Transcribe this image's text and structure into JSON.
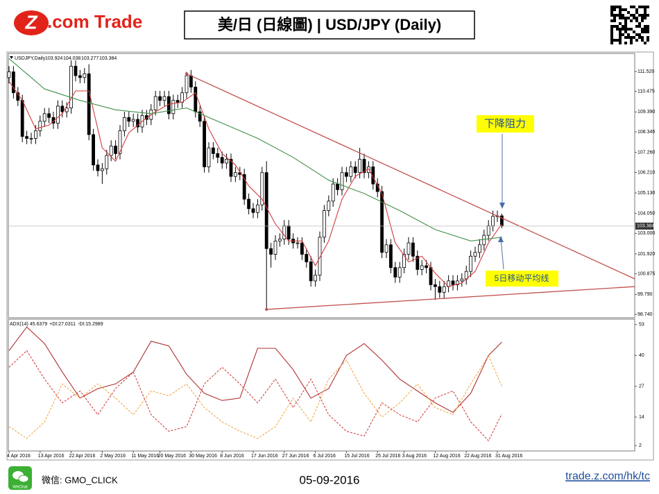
{
  "header": {
    "logo_text": ".com Trade",
    "title": "美/日 (日線圖) | USD/JPY  (Daily)"
  },
  "footer": {
    "wechat_icon_label": "WeChat",
    "wechat_label": "微信: GMO_CLICK",
    "date": "05-09-2016",
    "url": "trade.z.com/hk/tc"
  },
  "chart_data": [
    {
      "type": "candlestick",
      "symbol_label": "USDJPY,Daily",
      "categories": [
        "4 Apr 2016",
        null,
        null,
        null,
        null,
        null,
        null,
        "13 Apr 2016",
        null,
        null,
        null,
        null,
        null,
        null,
        "22 Apr 2016",
        null,
        null,
        null,
        null,
        null,
        null,
        "2 May 2016",
        null,
        null,
        null,
        null,
        null,
        null,
        "11 May 2016",
        null,
        null,
        null,
        null,
        null,
        "20 May 2016",
        null,
        null,
        null,
        null,
        null,
        null,
        "30 May 2016",
        null,
        null,
        null,
        null,
        null,
        null,
        "8 Jun 2016",
        null,
        null,
        null,
        null,
        null,
        null,
        "17 Jun 2016",
        null,
        null,
        null,
        null,
        null,
        null,
        "27 Jun 2016",
        null,
        null,
        null,
        null,
        null,
        null,
        "6 Jul 2016",
        null,
        null,
        null,
        null,
        null,
        null,
        "15 Jul 2016",
        null,
        null,
        null,
        null,
        null,
        null,
        "25 Jul 2016",
        null,
        null,
        null,
        null,
        null,
        "3 Aug 2016",
        null,
        null,
        null,
        null,
        null,
        null,
        "12 Aug 2016",
        null,
        null,
        null,
        null,
        null,
        null,
        "22 Aug 2016",
        null,
        null,
        null,
        null,
        null,
        null,
        "31 Aug 2016",
        null
      ],
      "ohlc": [
        [
          111.2,
          111.8,
          110.9,
          111.5
        ],
        [
          111.5,
          111.8,
          110.1,
          110.4
        ],
        [
          110.4,
          110.7,
          109.7,
          110.0
        ],
        [
          110.0,
          110.3,
          107.8,
          108.1
        ],
        [
          108.1,
          108.4,
          107.7,
          108.0
        ],
        [
          108.0,
          108.3,
          107.7,
          108.0
        ],
        [
          108.0,
          108.7,
          107.7,
          108.4
        ],
        [
          108.4,
          109.2,
          108.1,
          108.9
        ],
        [
          108.9,
          109.6,
          108.6,
          109.3
        ],
        [
          109.3,
          109.6,
          108.8,
          109.1
        ],
        [
          109.1,
          109.4,
          108.5,
          108.8
        ],
        [
          108.8,
          110.0,
          108.5,
          109.7
        ],
        [
          109.7,
          110.0,
          109.1,
          109.4
        ],
        [
          109.4,
          109.9,
          109.1,
          109.6
        ],
        [
          109.6,
          112.1,
          109.3,
          111.8
        ],
        [
          111.8,
          112.1,
          111.0,
          111.3
        ],
        [
          111.3,
          111.6,
          110.9,
          111.2
        ],
        [
          111.2,
          111.7,
          110.9,
          111.4
        ],
        [
          111.4,
          111.9,
          107.9,
          108.2
        ],
        [
          108.2,
          108.5,
          106.3,
          106.6
        ],
        [
          106.6,
          106.9,
          106.0,
          106.3
        ],
        [
          106.3,
          106.7,
          105.6,
          106.4
        ],
        [
          106.4,
          107.4,
          106.1,
          107.1
        ],
        [
          107.1,
          107.9,
          106.8,
          107.6
        ],
        [
          107.6,
          107.9,
          106.9,
          107.2
        ],
        [
          107.2,
          108.7,
          106.9,
          108.4
        ],
        [
          108.4,
          109.4,
          108.1,
          109.1
        ],
        [
          109.1,
          109.4,
          108.6,
          108.9
        ],
        [
          108.9,
          109.3,
          108.6,
          109.0
        ],
        [
          109.0,
          109.3,
          108.3,
          108.6
        ],
        [
          108.6,
          109.5,
          108.3,
          109.2
        ],
        [
          109.2,
          109.5,
          108.7,
          109.0
        ],
        [
          109.0,
          109.8,
          108.7,
          109.5
        ],
        [
          109.5,
          110.5,
          109.2,
          110.2
        ],
        [
          110.2,
          110.5,
          109.7,
          110.0
        ],
        [
          110.0,
          110.5,
          109.7,
          110.2
        ],
        [
          110.2,
          110.5,
          109.0,
          109.3
        ],
        [
          109.3,
          110.3,
          109.0,
          110.0
        ],
        [
          110.0,
          110.3,
          109.6,
          109.9
        ],
        [
          109.9,
          110.7,
          109.6,
          110.4
        ],
        [
          110.4,
          111.5,
          110.1,
          111.3
        ],
        [
          111.3,
          111.6,
          110.4,
          110.7
        ],
        [
          110.7,
          111.0,
          109.1,
          109.4
        ],
        [
          109.4,
          109.7,
          108.6,
          108.9
        ],
        [
          108.9,
          109.2,
          106.2,
          106.5
        ],
        [
          106.5,
          107.8,
          106.2,
          107.5
        ],
        [
          107.5,
          107.8,
          106.9,
          107.2
        ],
        [
          107.2,
          107.5,
          106.7,
          107.0
        ],
        [
          107.0,
          107.3,
          106.4,
          106.7
        ],
        [
          106.7,
          107.2,
          106.4,
          106.9
        ],
        [
          106.9,
          107.2,
          105.7,
          106.0
        ],
        [
          106.0,
          106.5,
          105.7,
          106.2
        ],
        [
          106.2,
          106.5,
          105.8,
          106.1
        ],
        [
          106.1,
          106.4,
          104.5,
          104.8
        ],
        [
          104.8,
          105.1,
          104.0,
          104.3
        ],
        [
          104.3,
          104.6,
          103.8,
          104.1
        ],
        [
          104.1,
          104.8,
          103.8,
          104.5
        ],
        [
          104.5,
          106.5,
          104.2,
          106.2
        ],
        [
          106.2,
          106.8,
          99.0,
          102.2
        ],
        [
          102.2,
          102.5,
          101.2,
          101.9
        ],
        [
          101.9,
          102.9,
          101.6,
          102.6
        ],
        [
          102.6,
          103.0,
          102.3,
          102.7
        ],
        [
          102.7,
          103.7,
          102.4,
          103.4
        ],
        [
          103.4,
          103.7,
          102.4,
          102.7
        ],
        [
          102.7,
          103.0,
          102.2,
          102.5
        ],
        [
          102.5,
          102.8,
          102.2,
          102.5
        ],
        [
          102.5,
          102.8,
          101.6,
          101.9
        ],
        [
          101.9,
          102.2,
          101.2,
          101.5
        ],
        [
          101.5,
          101.8,
          100.2,
          100.5
        ],
        [
          100.5,
          101.1,
          100.2,
          100.8
        ],
        [
          100.8,
          103.1,
          100.5,
          102.8
        ],
        [
          102.8,
          104.5,
          102.5,
          104.2
        ],
        [
          104.2,
          105.0,
          103.9,
          104.7
        ],
        [
          104.7,
          105.9,
          104.4,
          105.6
        ],
        [
          105.6,
          105.9,
          105.0,
          105.3
        ],
        [
          105.3,
          106.5,
          105.0,
          106.2
        ],
        [
          106.2,
          106.5,
          105.7,
          106.0
        ],
        [
          106.0,
          106.8,
          105.7,
          106.5
        ],
        [
          106.5,
          106.8,
          105.9,
          106.2
        ],
        [
          106.2,
          107.5,
          105.9,
          106.9
        ],
        [
          106.9,
          107.2,
          105.9,
          106.2
        ],
        [
          106.2,
          106.8,
          105.9,
          106.5
        ],
        [
          106.5,
          106.8,
          105.3,
          105.6
        ],
        [
          105.6,
          105.9,
          104.9,
          105.2
        ],
        [
          105.2,
          105.5,
          101.7,
          102.0
        ],
        [
          102.0,
          102.7,
          101.7,
          102.4
        ],
        [
          102.4,
          102.7,
          100.9,
          101.2
        ],
        [
          101.2,
          101.5,
          100.4,
          100.7
        ],
        [
          100.7,
          101.5,
          100.4,
          101.2
        ],
        [
          101.2,
          102.2,
          100.9,
          101.9
        ],
        [
          101.9,
          102.8,
          101.6,
          102.5
        ],
        [
          102.5,
          102.8,
          101.5,
          101.8
        ],
        [
          101.8,
          102.1,
          100.8,
          101.1
        ],
        [
          101.1,
          101.6,
          100.8,
          101.3
        ],
        [
          101.3,
          101.6,
          100.9,
          101.2
        ],
        [
          101.2,
          101.5,
          100.0,
          100.3
        ],
        [
          100.3,
          100.6,
          99.5,
          100.2
        ],
        [
          100.2,
          100.5,
          99.6,
          99.9
        ],
        [
          99.9,
          100.5,
          99.6,
          100.2
        ],
        [
          100.2,
          100.8,
          99.9,
          100.5
        ],
        [
          100.5,
          100.8,
          100.0,
          100.3
        ],
        [
          100.3,
          100.8,
          100.0,
          100.5
        ],
        [
          100.5,
          100.9,
          100.2,
          100.6
        ],
        [
          100.6,
          101.3,
          100.3,
          101.0
        ],
        [
          101.0,
          102.1,
          100.7,
          101.8
        ],
        [
          101.8,
          102.3,
          101.5,
          102.0
        ],
        [
          102.0,
          102.7,
          101.7,
          102.4
        ],
        [
          102.4,
          103.2,
          102.1,
          102.9
        ],
        [
          102.9,
          103.7,
          102.6,
          103.4
        ],
        [
          103.4,
          104.2,
          103.1,
          103.9
        ],
        [
          103.9,
          104.2,
          103.6,
          103.92
        ],
        [
          103.924,
          104.038,
          103.277,
          103.384
        ]
      ],
      "series": [
        {
          "color": "#d03a3a",
          "x": [
            0,
            3,
            6,
            9,
            12,
            15,
            18,
            21,
            24,
            27,
            30,
            33,
            36,
            39,
            42,
            45,
            48,
            51,
            54,
            57,
            60,
            63,
            66,
            69,
            72,
            75,
            78,
            81,
            84,
            87,
            90,
            93,
            96,
            99,
            102,
            105,
            108,
            111
          ],
          "values": [
            111.0,
            110.0,
            108.5,
            108.7,
            109.3,
            110.5,
            110.5,
            107.5,
            106.8,
            108.3,
            108.9,
            109.4,
            109.8,
            109.9,
            110.4,
            108.5,
            107.2,
            106.6,
            105.5,
            104.8,
            103.5,
            102.6,
            102.6,
            101.3,
            102.6,
            104.8,
            106.0,
            106.4,
            105.1,
            102.5,
            101.5,
            101.8,
            100.9,
            100.2,
            100.4,
            101.0,
            102.5,
            103.5
          ]
        },
        {
          "color": "#3f8f4a",
          "x": [
            0,
            8,
            16,
            24,
            32,
            40,
            48,
            56,
            64,
            72,
            80,
            88,
            96,
            104,
            111
          ],
          "values": [
            112.2,
            110.6,
            110.0,
            109.5,
            109.3,
            109.6,
            108.8,
            108.0,
            107.0,
            105.8,
            105.1,
            104.2,
            103.2,
            102.6,
            102.8
          ]
        }
      ],
      "trendlines": [
        {
          "color": "#c0504d",
          "x": [
            40,
            141
          ],
          "values": [
            111.4,
            100.6
          ]
        },
        {
          "color": "#c0504d",
          "x": [
            58,
            141
          ],
          "values": [
            99.0,
            100.2
          ]
        }
      ],
      "annotations": [
        {
          "text": "下降阻力"
        },
        {
          "text": "5日移动平均线"
        }
      ],
      "ylim": [
        98.56,
        112.47
      ],
      "yticks": [
        {
          "value": 111.52,
          "label": "111.520"
        },
        {
          "value": 110.475,
          "label": "110.475"
        },
        {
          "value": 109.39,
          "label": "109.390"
        },
        {
          "value": 108.345,
          "label": "108.345"
        },
        {
          "value": 107.26,
          "label": "107.260"
        },
        {
          "value": 106.21,
          "label": "106.210"
        },
        {
          "value": 105.13,
          "label": "105.130"
        },
        {
          "value": 104.05,
          "label": "104.050"
        },
        {
          "value": 103,
          "label": "103.000"
        },
        {
          "value": 101.92,
          "label": "101.920"
        },
        {
          "value": 100.875,
          "label": "100.875"
        },
        {
          "value": 99.79,
          "label": "99.790"
        },
        {
          "value": 98.74,
          "label": "98.740"
        }
      ]
    },
    {
      "type": "line",
      "series": [
        {
          "name": "ADX(14)",
          "color": "#b03030",
          "dashed": false,
          "x": [
            0,
            4,
            8,
            12,
            16,
            20,
            24,
            28,
            32,
            36,
            40,
            44,
            48,
            52,
            56,
            60,
            64,
            68,
            72,
            76,
            80,
            84,
            88,
            92,
            96,
            100,
            104,
            108,
            111
          ],
          "values": [
            42,
            52,
            45,
            33,
            22,
            26,
            28,
            33,
            46,
            44,
            32,
            24,
            21,
            22,
            43,
            43,
            34,
            22,
            26,
            40,
            45,
            38,
            30,
            25,
            20,
            16,
            24,
            40,
            45.6379
          ]
        },
        {
          "name": "+DI:",
          "color": "#f0a848",
          "dashed": true,
          "x": [
            0,
            4,
            8,
            12,
            16,
            20,
            24,
            28,
            32,
            36,
            40,
            44,
            48,
            52,
            56,
            60,
            64,
            68,
            72,
            76,
            80,
            84,
            88,
            92,
            96,
            100,
            104,
            108,
            111
          ],
          "values": [
            10,
            5,
            12,
            28,
            22,
            28,
            22,
            15,
            25,
            23,
            28,
            18,
            12,
            8,
            5,
            10,
            22,
            12,
            30,
            38,
            24,
            14,
            20,
            28,
            18,
            15,
            28,
            40,
            27.0311
          ]
        },
        {
          "name": "-DI:",
          "color": "#d04040",
          "dashed": true,
          "x": [
            0,
            4,
            8,
            12,
            16,
            20,
            24,
            28,
            32,
            36,
            40,
            44,
            48,
            52,
            56,
            60,
            64,
            68,
            72,
            76,
            80,
            84,
            88,
            92,
            96,
            100,
            104,
            108,
            111
          ],
          "values": [
            35,
            42,
            30,
            20,
            25,
            15,
            26,
            33,
            15,
            8,
            10,
            28,
            35,
            28,
            20,
            30,
            18,
            30,
            15,
            8,
            6,
            20,
            15,
            12,
            22,
            25,
            12,
            4,
            15.2989
          ]
        }
      ],
      "ylim": [
        -0.3,
        55
      ],
      "yticks": [
        53,
        40,
        27,
        14,
        2
      ]
    }
  ]
}
